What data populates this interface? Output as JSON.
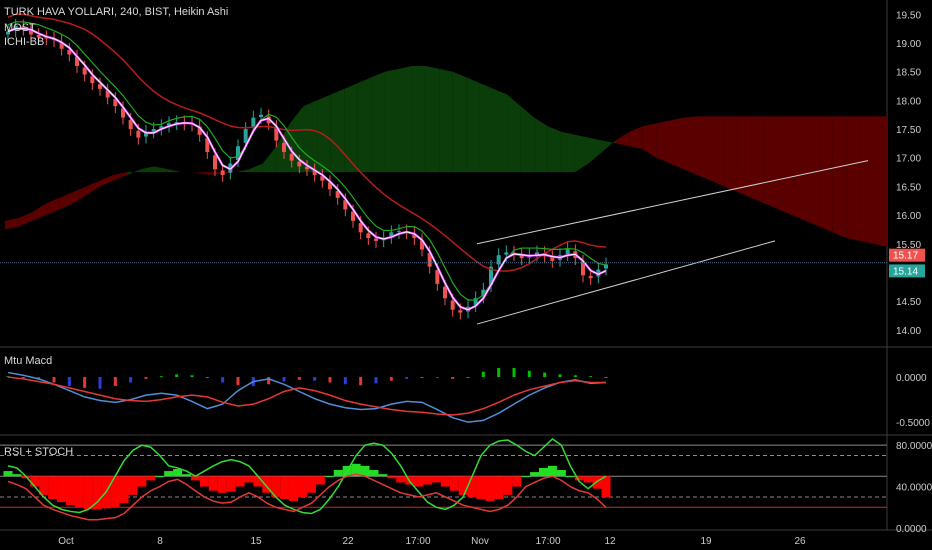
{
  "header": {
    "title": "TURK HAVA YOLLARI, 240, BIST, Heikin Ashi",
    "indicators": [
      "MOST",
      "ICHI-BB"
    ]
  },
  "panes": {
    "macd_label": "Mtu Macd",
    "rsi_label": "RSI + STOCH"
  },
  "colors": {
    "background": "#000000",
    "up": "#26a69a",
    "down": "#ef5350",
    "cloud_bull": "#0b3d0b",
    "cloud_bear": "#5a0000",
    "baseline": "#b71c1c",
    "conversion": "#1faa1f",
    "most": "#e040fb",
    "channel": "#cfcfcf",
    "macd_line": "#4f8fd8",
    "signal_line": "#e53935",
    "rsi": "#e53935",
    "stoch": "#33dd33",
    "price_tag_red": "#ef5350",
    "price_tag_green": "#26a69a"
  },
  "chart_data": [
    {
      "type": "candlestick",
      "title": "TURK HAVA YOLLARI, 240, BIST, Heikin Ashi",
      "x_ticks": [
        "Oct",
        "8",
        "15",
        "22",
        "17:00",
        "Nov",
        "17:00",
        "12",
        "19",
        "26"
      ],
      "y_ticks": [
        "19.50",
        "19.00",
        "18.50",
        "18.00",
        "17.50",
        "17.00",
        "16.50",
        "16.00",
        "15.50",
        "15.00",
        "14.50",
        "14.00"
      ],
      "ylim": [
        13.7,
        19.75
      ],
      "price_labels": [
        {
          "value": 15.17,
          "text": "15.17"
        },
        {
          "value": 15.14,
          "text": "15.14"
        }
      ],
      "candles_close": [
        19.2,
        19.3,
        19.25,
        19.15,
        19.1,
        19.08,
        19.05,
        18.9,
        18.8,
        18.6,
        18.45,
        18.3,
        18.2,
        18.05,
        17.9,
        17.7,
        17.5,
        17.35,
        17.45,
        17.5,
        17.55,
        17.6,
        17.62,
        17.6,
        17.58,
        17.4,
        17.1,
        16.8,
        16.7,
        16.9,
        17.2,
        17.5,
        17.7,
        17.75,
        17.6,
        17.3,
        17.1,
        16.95,
        16.85,
        16.8,
        16.7,
        16.6,
        16.45,
        16.3,
        16.1,
        15.9,
        15.7,
        15.6,
        15.55,
        15.6,
        15.7,
        15.72,
        15.7,
        15.6,
        15.4,
        15.1,
        14.8,
        14.55,
        14.35,
        14.3,
        14.4,
        14.55,
        14.7,
        15.1,
        15.3,
        15.35,
        15.32,
        15.25,
        15.3,
        15.35,
        15.28,
        15.2,
        15.3,
        15.4,
        15.25,
        14.95,
        14.9,
        15.05,
        15.14
      ],
      "ichimoku": {
        "span_a": [
          15.75,
          15.8,
          15.9,
          16.0,
          16.1,
          16.2,
          16.35,
          16.5,
          16.6,
          16.7,
          16.8,
          16.85,
          16.8,
          16.75,
          16.75,
          16.7,
          16.72,
          16.75,
          16.8,
          16.9,
          17.2,
          17.6,
          17.9,
          18.0,
          18.1,
          18.2,
          18.3,
          18.4,
          18.5,
          18.55,
          18.6,
          18.6,
          18.55,
          18.5,
          18.4,
          18.3,
          18.2,
          18.1,
          17.9,
          17.7,
          17.55,
          17.45,
          17.4,
          17.35,
          17.3,
          17.25,
          17.2,
          17.15,
          17.0,
          16.9,
          16.8,
          16.7,
          16.6,
          16.5,
          16.4,
          16.3,
          16.2,
          16.1,
          16.0,
          15.9,
          15.8,
          15.7,
          15.6,
          15.55,
          15.5,
          15.45
        ],
        "span_b": [
          15.9,
          15.95,
          16.05,
          16.2,
          16.3,
          16.4,
          16.5,
          16.6,
          16.7,
          16.75,
          16.75,
          16.75,
          16.75,
          16.75,
          16.75,
          16.75,
          16.75,
          16.75,
          16.75,
          16.75,
          16.75,
          16.75,
          16.75,
          16.75,
          16.75,
          16.75,
          16.75,
          16.75,
          16.75,
          16.75,
          16.75,
          16.75,
          16.75,
          16.75,
          16.75,
          16.75,
          16.75,
          16.75,
          16.75,
          16.75,
          16.75,
          16.75,
          16.75,
          16.9,
          17.1,
          17.3,
          17.45,
          17.55,
          17.6,
          17.65,
          17.7,
          17.72,
          17.72,
          17.72,
          17.72,
          17.72,
          17.72,
          17.72,
          17.72,
          17.72,
          17.72,
          17.72,
          17.72,
          17.72,
          17.72,
          17.72
        ]
      },
      "channel": {
        "upper": [
          [
            15.5,
            16.95
          ]
        ],
        "lower": [
          [
            14.1,
            15.55
          ]
        ]
      }
    },
    {
      "type": "bar",
      "title": "Mtu Macd",
      "y_ticks": [
        "0.0000",
        "-0.5000"
      ],
      "ylim": [
        -0.62,
        0.3
      ],
      "macd_line": [
        0.05,
        0.02,
        -0.02,
        -0.08,
        -0.15,
        -0.22,
        -0.26,
        -0.28,
        -0.25,
        -0.2,
        -0.18,
        -0.2,
        -0.27,
        -0.35,
        -0.3,
        -0.15,
        -0.05,
        -0.02,
        -0.08,
        -0.16,
        -0.24,
        -0.3,
        -0.34,
        -0.36,
        -0.35,
        -0.3,
        -0.27,
        -0.28,
        -0.36,
        -0.45,
        -0.5,
        -0.48,
        -0.4,
        -0.3,
        -0.2,
        -0.12,
        -0.06,
        -0.03,
        -0.07,
        -0.06
      ],
      "signal_line": [
        0.0,
        -0.02,
        -0.05,
        -0.08,
        -0.12,
        -0.16,
        -0.2,
        -0.24,
        -0.26,
        -0.27,
        -0.25,
        -0.22,
        -0.2,
        -0.22,
        -0.28,
        -0.32,
        -0.3,
        -0.24,
        -0.16,
        -0.12,
        -0.15,
        -0.2,
        -0.26,
        -0.3,
        -0.33,
        -0.36,
        -0.38,
        -0.39,
        -0.41,
        -0.42,
        -0.4,
        -0.35,
        -0.28,
        -0.2,
        -0.14,
        -0.1,
        -0.06,
        -0.04,
        -0.06,
        -0.06
      ],
      "histogram": [
        0.01,
        -0.01,
        -0.03,
        -0.06,
        -0.1,
        -0.12,
        -0.13,
        -0.1,
        -0.06,
        -0.02,
        0.01,
        0.03,
        0.02,
        -0.01,
        -0.06,
        -0.09,
        -0.1,
        -0.08,
        -0.05,
        -0.03,
        -0.04,
        -0.06,
        -0.08,
        -0.09,
        -0.07,
        -0.04,
        -0.02,
        -0.01,
        -0.01,
        -0.02,
        0.0,
        0.06,
        0.1,
        0.1,
        0.07,
        0.05,
        0.03,
        0.02,
        0.01,
        0.0
      ]
    },
    {
      "type": "area",
      "title": "RSI + STOCH",
      "y_ticks": [
        "80.0000",
        "40.0000",
        "0.0000"
      ],
      "ylim": [
        0,
        85
      ],
      "levels": [
        80,
        70,
        50,
        30,
        20
      ],
      "rsi": [
        55,
        52,
        48,
        40,
        32,
        28,
        25,
        22,
        20,
        18,
        18,
        19,
        20,
        24,
        32,
        40,
        46,
        50,
        55,
        57,
        52,
        46,
        40,
        36,
        34,
        35,
        40,
        44,
        40,
        34,
        30,
        28,
        26,
        30,
        34,
        42,
        50,
        56,
        60,
        62,
        60,
        56,
        52,
        48,
        44,
        42,
        40,
        42,
        44,
        40,
        36,
        32,
        30,
        28,
        26,
        28,
        32,
        40,
        50,
        54,
        58,
        60,
        56,
        50,
        46,
        44,
        38,
        30
      ],
      "stoch": [
        60,
        58,
        50,
        40,
        30,
        22,
        18,
        16,
        15,
        18,
        25,
        35,
        50,
        65,
        75,
        80,
        78,
        70,
        60,
        58,
        55,
        50,
        55,
        60,
        64,
        66,
        64,
        60,
        50,
        40,
        30,
        22,
        18,
        15,
        14,
        18,
        28,
        40,
        55,
        70,
        80,
        82,
        80,
        72,
        60,
        45,
        35,
        25,
        20,
        18,
        22,
        30,
        50,
        70,
        80,
        84,
        85,
        80,
        74,
        70,
        78,
        86,
        80,
        60,
        45,
        38,
        45,
        50
      ]
    }
  ]
}
